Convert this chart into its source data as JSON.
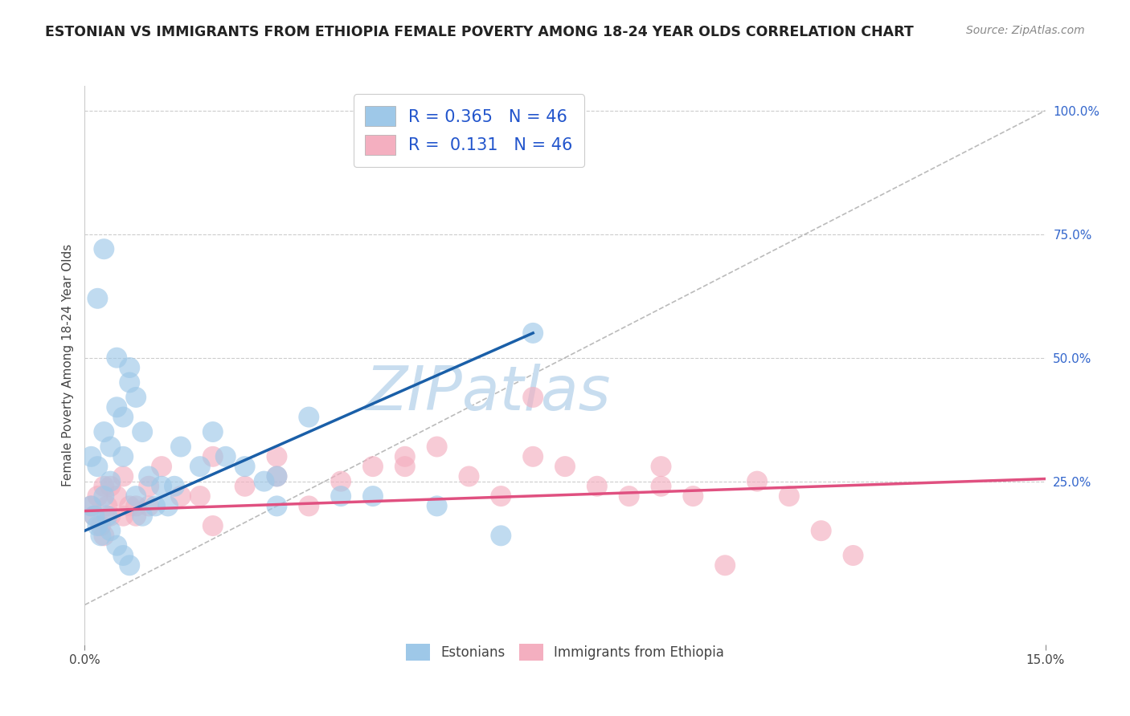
{
  "title": "ESTONIAN VS IMMIGRANTS FROM ETHIOPIA FEMALE POVERTY AMONG 18-24 YEAR OLDS CORRELATION CHART",
  "source": "Source: ZipAtlas.com",
  "ylabel": "Female Poverty Among 18-24 Year Olds",
  "xmin": 0.0,
  "xmax": 15.0,
  "ymin": -5.0,
  "ymax": 105.0,
  "yplot_min": 0.0,
  "yplot_max": 100.0,
  "right_yticks": [
    0.0,
    25.0,
    50.0,
    75.0,
    100.0
  ],
  "right_yticklabels": [
    "",
    "25.0%",
    "50.0%",
    "75.0%",
    "100.0%"
  ],
  "blue_color": "#9ec8e8",
  "pink_color": "#f4afc0",
  "blue_line_color": "#1a5fa8",
  "pink_line_color": "#e05080",
  "diag_color": "#aaaaaa",
  "watermark": "ZIPatlas",
  "watermark_color": "#c8ddef",
  "grid_color": "#cccccc",
  "blue_scatter_x": [
    0.1,
    0.15,
    0.2,
    0.25,
    0.3,
    0.35,
    0.4,
    0.5,
    0.6,
    0.7,
    0.8,
    0.9,
    1.0,
    1.1,
    1.2,
    1.3,
    0.1,
    0.2,
    0.3,
    0.4,
    0.5,
    0.6,
    0.7,
    0.8,
    0.2,
    0.3,
    0.5,
    0.7,
    1.5,
    2.0,
    2.5,
    3.0,
    3.5,
    5.5,
    7.0,
    0.4,
    0.6,
    0.9,
    1.8,
    2.2,
    4.0,
    6.5,
    3.0,
    1.4,
    2.8,
    4.5
  ],
  "blue_scatter_y": [
    20.0,
    18.0,
    16.0,
    14.0,
    22.0,
    18.0,
    15.0,
    12.0,
    10.0,
    8.0,
    22.0,
    18.0,
    26.0,
    20.0,
    24.0,
    20.0,
    30.0,
    28.0,
    35.0,
    32.0,
    40.0,
    38.0,
    45.0,
    42.0,
    62.0,
    72.0,
    50.0,
    48.0,
    32.0,
    35.0,
    28.0,
    26.0,
    38.0,
    20.0,
    55.0,
    25.0,
    30.0,
    35.0,
    28.0,
    30.0,
    22.0,
    14.0,
    20.0,
    24.0,
    25.0,
    22.0
  ],
  "pink_scatter_x": [
    0.1,
    0.15,
    0.2,
    0.25,
    0.3,
    0.35,
    0.4,
    0.5,
    0.6,
    0.7,
    0.8,
    1.0,
    1.2,
    1.5,
    2.0,
    2.5,
    3.0,
    3.5,
    4.0,
    4.5,
    5.0,
    5.5,
    6.0,
    6.5,
    7.0,
    7.5,
    8.0,
    8.5,
    9.0,
    9.5,
    10.0,
    10.5,
    11.0,
    12.0,
    0.3,
    0.6,
    1.0,
    1.8,
    3.0,
    5.0,
    7.0,
    9.0,
    11.5,
    0.4,
    0.8,
    2.0
  ],
  "pink_scatter_y": [
    20.0,
    18.0,
    22.0,
    16.0,
    24.0,
    20.0,
    18.0,
    22.0,
    26.0,
    20.0,
    18.0,
    24.0,
    28.0,
    22.0,
    16.0,
    24.0,
    30.0,
    20.0,
    25.0,
    28.0,
    30.0,
    32.0,
    26.0,
    22.0,
    42.0,
    28.0,
    24.0,
    22.0,
    28.0,
    22.0,
    8.0,
    25.0,
    22.0,
    10.0,
    14.0,
    18.0,
    20.0,
    22.0,
    26.0,
    28.0,
    30.0,
    24.0,
    15.0,
    24.0,
    20.0,
    30.0
  ],
  "blue_line_x0": 0.0,
  "blue_line_y0": 15.0,
  "blue_line_x1": 7.0,
  "blue_line_y1": 55.0,
  "pink_line_x0": 0.0,
  "pink_line_y0": 19.0,
  "pink_line_x1": 15.0,
  "pink_line_y1": 25.5,
  "legend1_text": "R = 0.365   N = 46",
  "legend2_text": "R =  0.131   N = 46",
  "legend_blue_color": "#2255cc",
  "bottom_legend1": "Estonians",
  "bottom_legend2": "Immigrants from Ethiopia"
}
